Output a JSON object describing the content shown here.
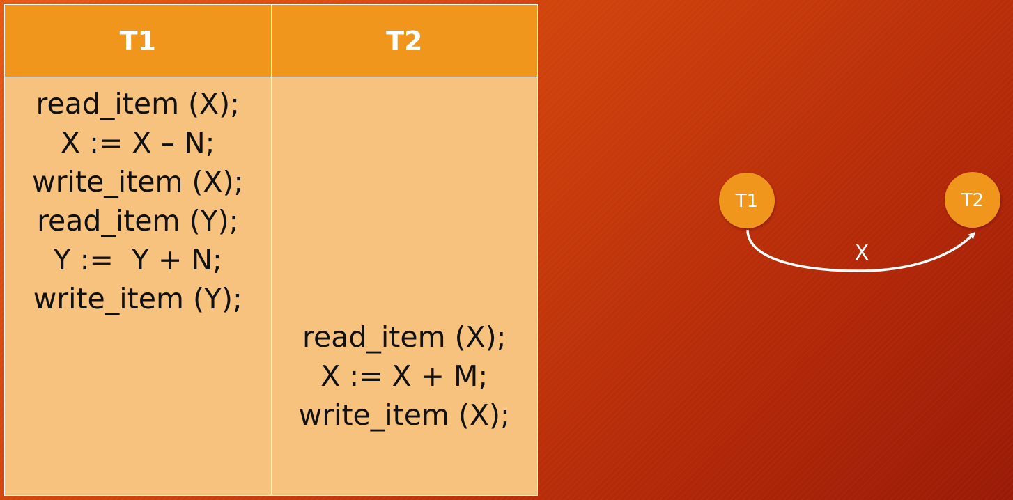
{
  "table": {
    "headers": [
      "T1",
      "T2"
    ],
    "t1_operations": [
      "read_item (X);",
      "X := X – N;",
      "write_item (X);",
      "read_item (Y);",
      "Y :=  Y + N;",
      "write_item (Y);"
    ],
    "t2_operations": [
      "read_item (X);",
      "X := X + M;",
      "write_item (X);"
    ]
  },
  "graph": {
    "nodes": [
      {
        "id": "T1",
        "label": "T1"
      },
      {
        "id": "T2",
        "label": "T2"
      }
    ],
    "edges": [
      {
        "from": "T1",
        "to": "T2",
        "label": "X"
      }
    ]
  },
  "colors": {
    "header_fill": "#f0961c",
    "cell_fill": "#f6c27e",
    "node_fill": "#f0961c",
    "edge": "#ffffff"
  }
}
